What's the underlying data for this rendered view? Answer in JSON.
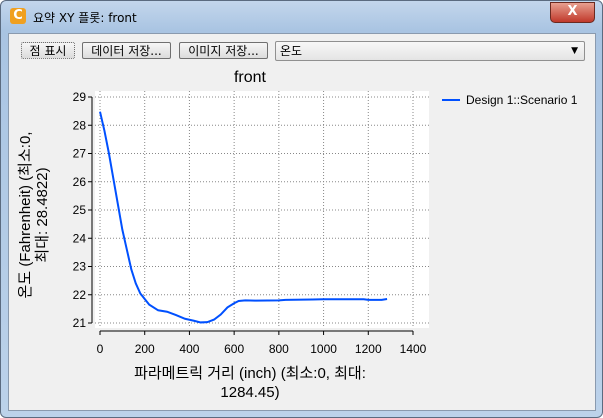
{
  "window": {
    "title": "요약 XY 플롯: front",
    "app_icon": "C",
    "close": "X"
  },
  "toolbar": {
    "show_points": "점 표시",
    "save_data": "데이터 저장...",
    "save_image": "이미지 저장...",
    "variable_select": "온도"
  },
  "chart_data": {
    "type": "line",
    "title": "front",
    "xlabel_lines": [
      "파라메트릭 거리 (inch) (최소:0, 최대:",
      "1284.45)"
    ],
    "ylabel_lines": [
      "온도 (Fahrenheit) (최소:0,",
      "최대: 28.4822)"
    ],
    "xlim": [
      0,
      1400
    ],
    "ylim": [
      21,
      29
    ],
    "xticks": [
      0,
      200,
      400,
      600,
      800,
      1000,
      1200,
      1400
    ],
    "yticks": [
      21,
      22,
      23,
      24,
      25,
      26,
      27,
      28,
      29
    ],
    "grid": true,
    "legend": "right",
    "series": [
      {
        "name": "Design 1::Scenario 1",
        "color": "#0050ff",
        "x": [
          0,
          20,
          40,
          60,
          80,
          100,
          120,
          140,
          160,
          180,
          200,
          220,
          260,
          300,
          340,
          380,
          420,
          450,
          480,
          510,
          540,
          570,
          600,
          620,
          650,
          700,
          800,
          830,
          950,
          1000,
          1180,
          1200,
          1260,
          1284
        ],
        "y": [
          28.48,
          27.8,
          27.0,
          26.1,
          25.2,
          24.3,
          23.6,
          22.9,
          22.4,
          22.05,
          21.85,
          21.65,
          21.45,
          21.4,
          21.28,
          21.15,
          21.08,
          21.02,
          21.03,
          21.12,
          21.3,
          21.55,
          21.7,
          21.78,
          21.8,
          21.79,
          21.8,
          21.82,
          21.83,
          21.84,
          21.84,
          21.82,
          21.82,
          21.85
        ]
      }
    ]
  }
}
